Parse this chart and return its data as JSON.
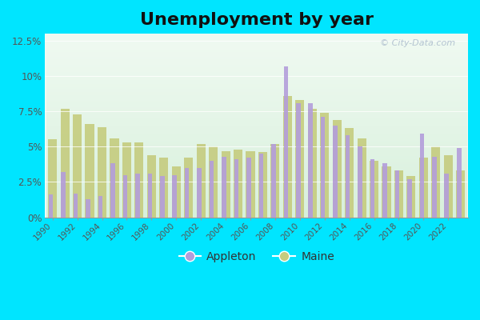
{
  "title": "Unemployment by year",
  "years": [
    1990,
    1991,
    1992,
    1993,
    1994,
    1995,
    1996,
    1997,
    1998,
    1999,
    2000,
    2001,
    2002,
    2003,
    2004,
    2005,
    2006,
    2007,
    2008,
    2009,
    2010,
    2011,
    2012,
    2013,
    2014,
    2015,
    2016,
    2017,
    2018,
    2019,
    2020,
    2021,
    2022,
    2023
  ],
  "appleton": [
    1.6,
    3.2,
    1.7,
    1.3,
    1.5,
    3.8,
    3.0,
    3.1,
    3.1,
    2.9,
    3.0,
    3.5,
    3.5,
    4.0,
    4.3,
    4.1,
    4.2,
    4.5,
    5.2,
    10.7,
    8.1,
    8.1,
    7.1,
    6.5,
    5.8,
    5.0,
    4.1,
    3.8,
    3.3,
    2.7,
    5.9,
    4.3,
    3.1,
    4.9
  ],
  "maine": [
    5.5,
    7.7,
    7.3,
    6.6,
    6.4,
    5.6,
    5.3,
    5.3,
    4.4,
    4.2,
    3.6,
    4.2,
    5.2,
    5.0,
    4.7,
    4.8,
    4.7,
    4.6,
    5.2,
    8.6,
    8.3,
    7.7,
    7.4,
    6.9,
    6.3,
    5.6,
    4.0,
    3.6,
    3.3,
    2.9,
    4.2,
    5.0,
    4.4,
    3.3
  ],
  "appleton_color": "#b39ddb",
  "maine_color": "#c5cc7e",
  "outer_bg": "#00e5ff",
  "plot_bg_top": "#f0faf2",
  "plot_bg_bottom": "#d8f0dc",
  "ylim": [
    0,
    13
  ],
  "yticks": [
    0,
    2.5,
    5.0,
    7.5,
    10.0,
    12.5
  ],
  "ytick_labels": [
    "0%",
    "2.5%",
    "5%",
    "7.5%",
    "10%",
    "12.5%"
  ],
  "title_fontsize": 16,
  "legend_fontsize": 10,
  "watermark_text": "© City-Data.com",
  "watermark_color": "#aabbcc"
}
